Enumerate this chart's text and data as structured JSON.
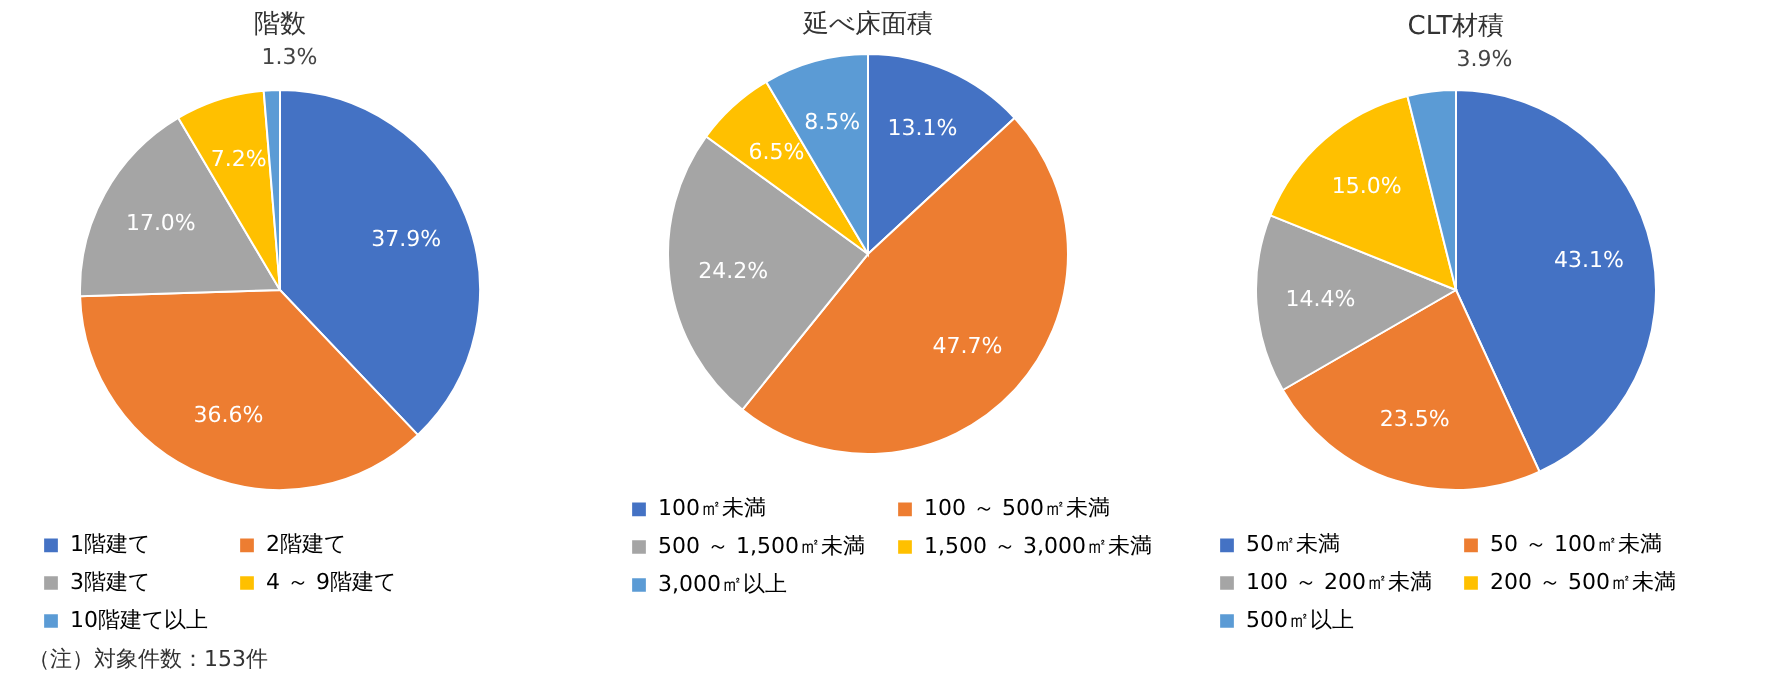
{
  "chart_data": [
    {
      "type": "pie",
      "title": "階数",
      "categories": [
        "1階建て",
        "2階建て",
        "3階建て",
        "4 ～ 9階建て",
        "10階建て以上"
      ],
      "values": [
        37.9,
        36.6,
        17.0,
        7.2,
        1.3
      ],
      "colors": [
        "#4472c4",
        "#ed7d31",
        "#a5a5a5",
        "#ffc000",
        "#5b9bd5"
      ],
      "value_labels": [
        "37.9%",
        "36.6%",
        "17.0%",
        "7.2%",
        "1.3%"
      ],
      "legend": "bottom",
      "annotations": [
        "（注）対象件数：153件"
      ]
    },
    {
      "type": "pie",
      "title": "延べ床面積",
      "categories": [
        "100㎡未満",
        "100 ～ 500㎡未満",
        "500 ～ 1,500㎡未満",
        "1,500 ～ 3,000㎡未満",
        "3,000㎡以上"
      ],
      "values": [
        13.1,
        47.7,
        24.2,
        6.5,
        8.5
      ],
      "colors": [
        "#4472c4",
        "#ed7d31",
        "#a5a5a5",
        "#ffc000",
        "#5b9bd5"
      ],
      "value_labels": [
        "13.1%",
        "47.7%",
        "24.2%",
        "6.5%",
        "8.5%"
      ],
      "legend": "bottom"
    },
    {
      "type": "pie",
      "title": "CLT材積",
      "categories": [
        "50㎡未満",
        "50 ～ 100㎡未満",
        "100 ～ 200㎡未満",
        "200 ～ 500㎡未満",
        "500㎡以上"
      ],
      "values": [
        43.1,
        23.5,
        14.4,
        15.0,
        3.9
      ],
      "colors": [
        "#4472c4",
        "#ed7d31",
        "#a5a5a5",
        "#ffc000",
        "#5b9bd5"
      ],
      "value_labels": [
        "43.1%",
        "23.5%",
        "14.4%",
        "15.0%",
        "3.9%"
      ],
      "legend": "bottom"
    }
  ]
}
